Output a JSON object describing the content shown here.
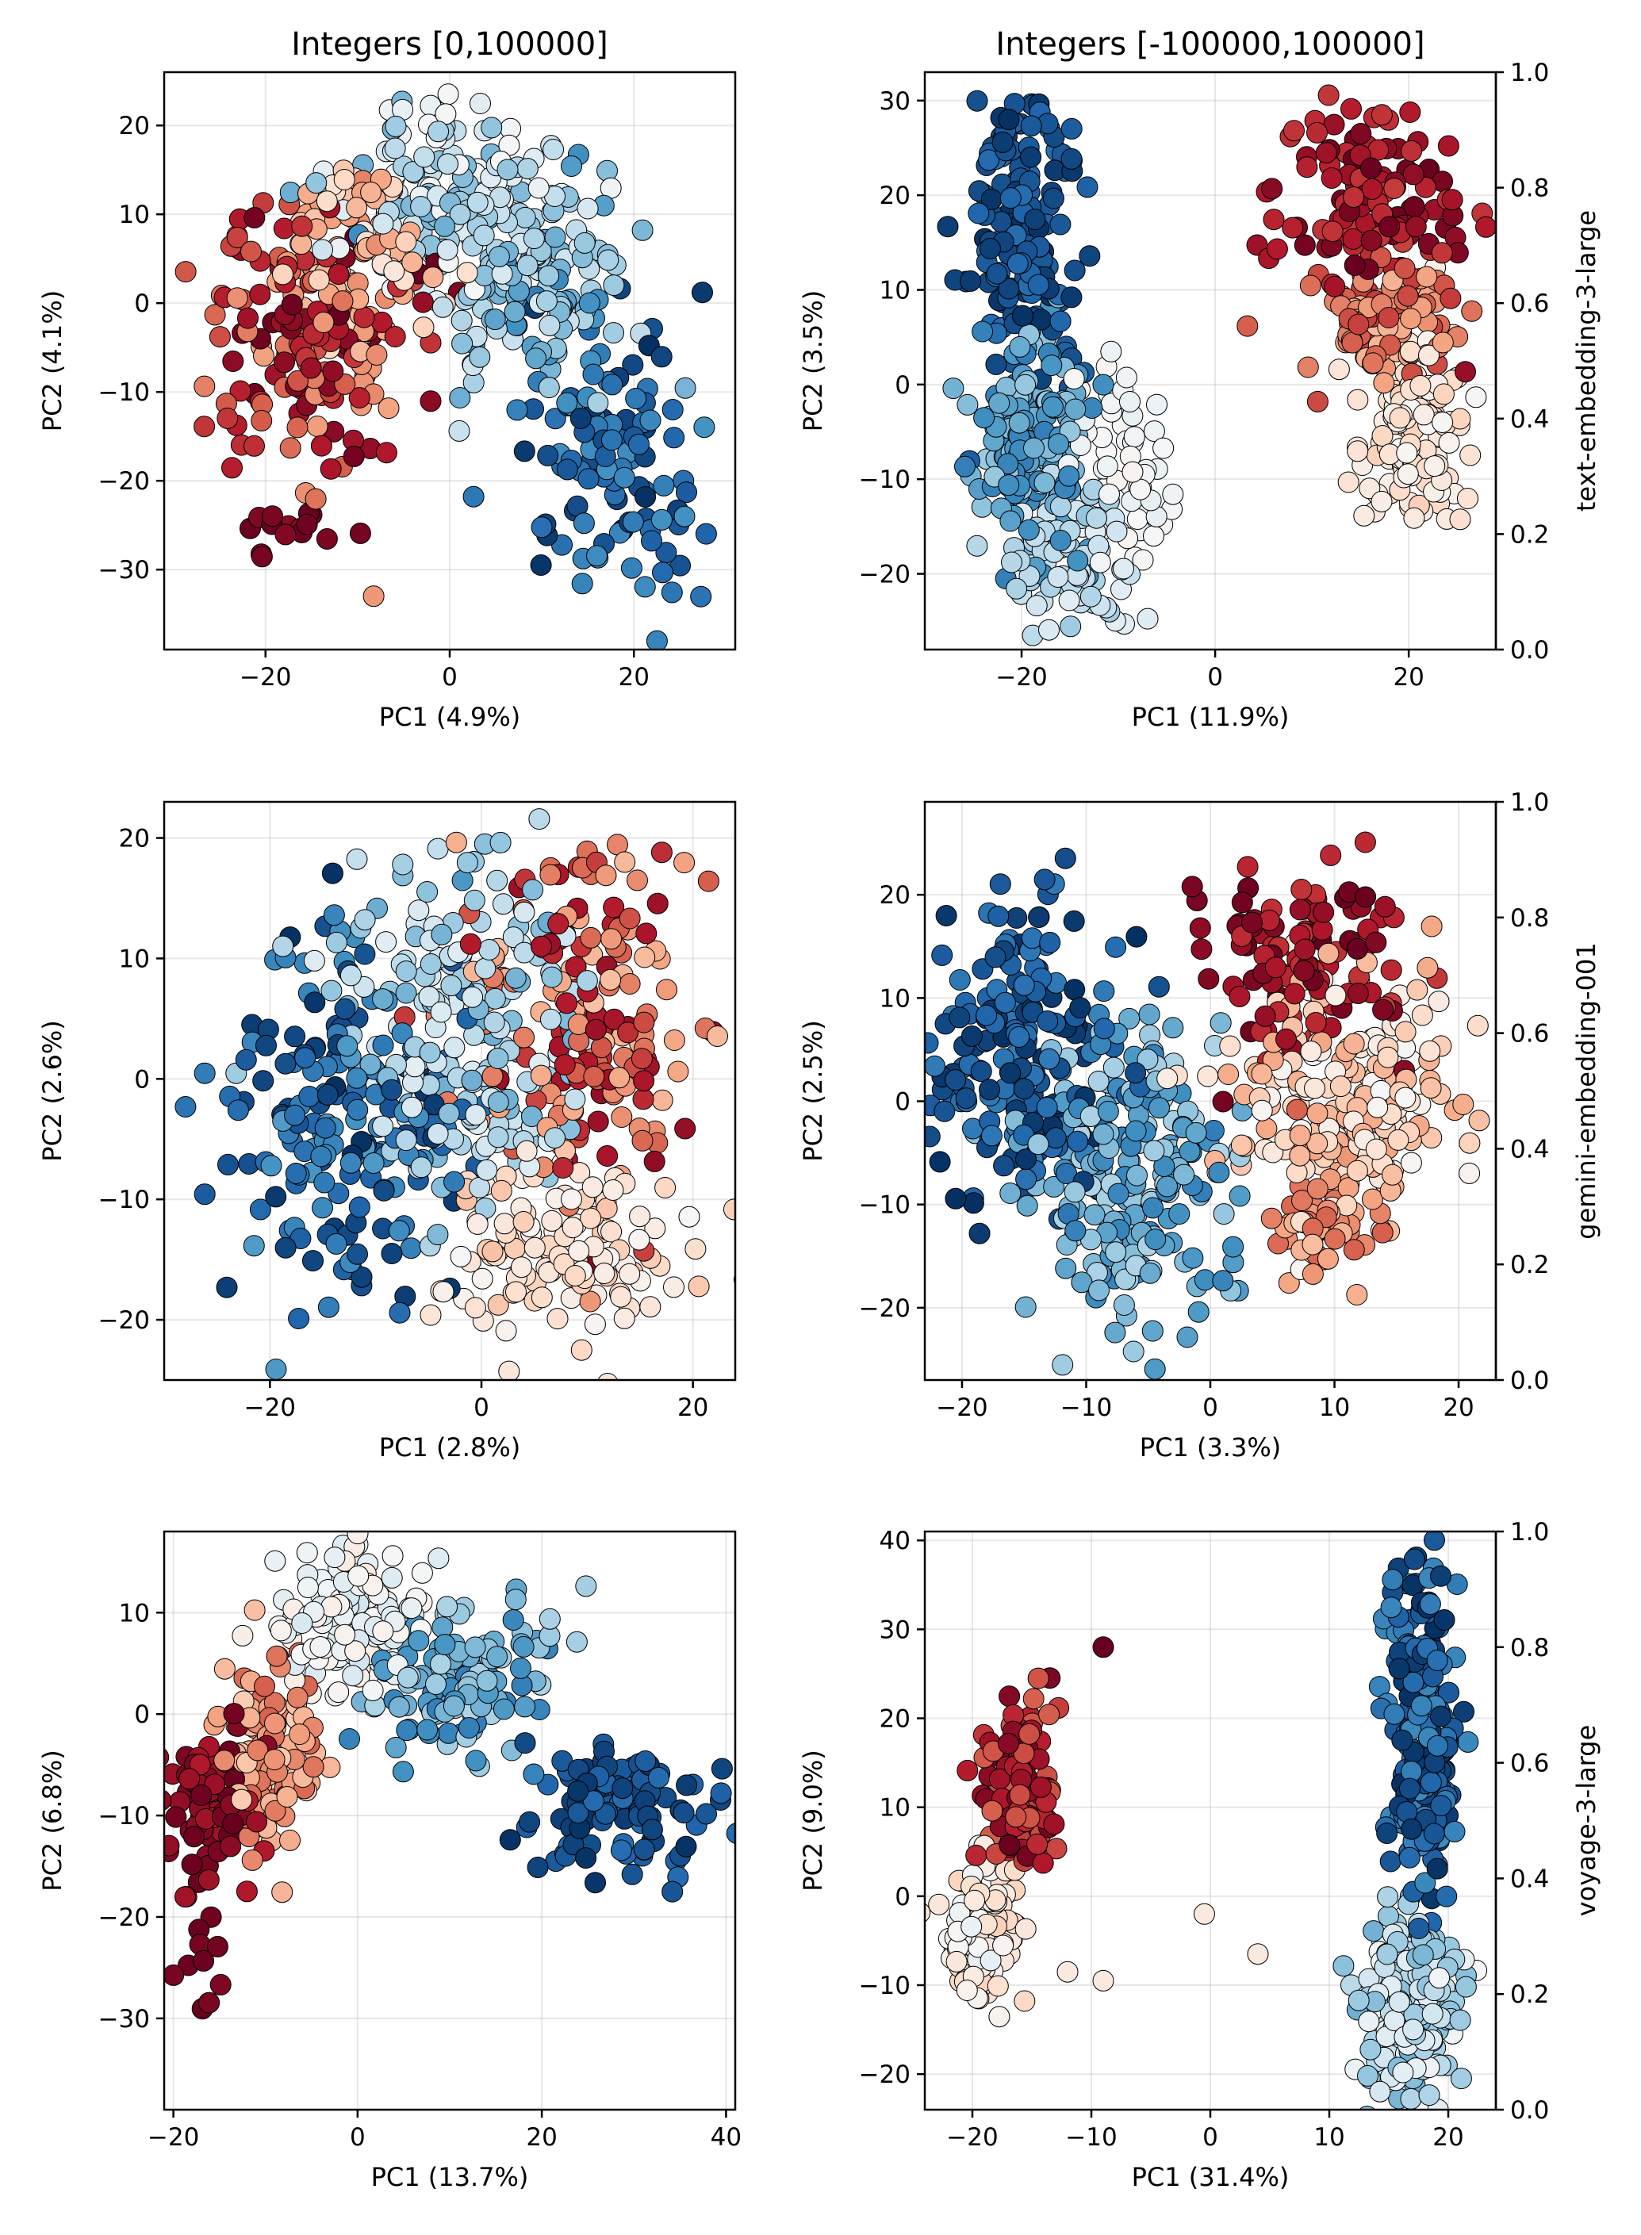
{
  "figure": {
    "colormap": "RdBu",
    "colormap_stops": [
      "#67001f",
      "#b2182b",
      "#d6604d",
      "#f4a582",
      "#fddbc7",
      "#f7f7f7",
      "#d1e5f0",
      "#92c5de",
      "#4393c3",
      "#2166ac",
      "#053061"
    ],
    "edge_color": "#000000"
  },
  "chart_data": [
    {
      "type": "scatter",
      "id": "p00",
      "title": "Integers [0,100000]",
      "xlabel": "PC1 (4.9%)",
      "ylabel": "PC2 (4.1%)",
      "xlim": [
        -31,
        31
      ],
      "ylim": [
        -39,
        26
      ],
      "xticks": [
        -20,
        0,
        20
      ],
      "yticks": [
        -30,
        -20,
        -10,
        0,
        10,
        20
      ],
      "grid": true,
      "clusters": [
        {
          "cx": -16,
          "cy": -5,
          "sx": 6,
          "sy": 8,
          "c0": 0.0,
          "c1": 0.3,
          "n": 160
        },
        {
          "cx": -10,
          "cy": 6,
          "sx": 4,
          "sy": 5,
          "c0": 0.25,
          "c1": 0.45,
          "n": 90
        },
        {
          "cx": 0,
          "cy": 12,
          "sx": 7,
          "sy": 6,
          "c0": 0.5,
          "c1": 0.75,
          "n": 160
        },
        {
          "cx": 8,
          "cy": 3,
          "sx": 6,
          "sy": 6,
          "c0": 0.6,
          "c1": 0.85,
          "n": 120
        },
        {
          "cx": 18,
          "cy": -18,
          "sx": 5,
          "sy": 8,
          "c0": 0.8,
          "c1": 1.0,
          "n": 110
        },
        {
          "cx": -16,
          "cy": -26,
          "sx": 4,
          "sy": 2,
          "c0": 0.0,
          "c1": 0.05,
          "n": 15
        }
      ]
    },
    {
      "type": "scatter",
      "id": "p01",
      "title": "Integers [-100000,100000]",
      "xlabel": "PC1 (11.9%)",
      "ylabel": "PC2 (3.5%)",
      "xlim": [
        -30,
        29
      ],
      "ylim": [
        -28,
        33
      ],
      "xticks": [
        -20,
        0,
        20
      ],
      "yticks": [
        -20,
        -10,
        0,
        10,
        20,
        30
      ],
      "grid": true,
      "colorbar": {
        "label": "text-embedding-3-large",
        "ticks": [
          0.0,
          0.2,
          0.4,
          0.6,
          0.8,
          1.0
        ]
      },
      "clusters": [
        {
          "cx": -20,
          "cy": 16,
          "sx": 3,
          "sy": 8,
          "c0": 0.88,
          "c1": 1.0,
          "n": 160
        },
        {
          "cx": -19,
          "cy": -6,
          "sx": 3,
          "sy": 6,
          "c0": 0.68,
          "c1": 0.85,
          "n": 160
        },
        {
          "cx": -15,
          "cy": -19,
          "sx": 3,
          "sy": 4,
          "c0": 0.55,
          "c1": 0.68,
          "n": 90
        },
        {
          "cx": -10,
          "cy": -9,
          "sx": 3,
          "sy": 5,
          "c0": 0.48,
          "c1": 0.55,
          "n": 60
        },
        {
          "cx": 16,
          "cy": 19,
          "sx": 5,
          "sy": 5,
          "c0": 0.0,
          "c1": 0.15,
          "n": 120
        },
        {
          "cx": 18,
          "cy": 7,
          "sx": 4,
          "sy": 3,
          "c0": 0.15,
          "c1": 0.35,
          "n": 110
        },
        {
          "cx": 20,
          "cy": -6,
          "sx": 3,
          "sy": 5,
          "c0": 0.38,
          "c1": 0.5,
          "n": 120
        }
      ]
    },
    {
      "type": "scatter",
      "id": "p10",
      "xlabel": "PC1 (2.8%)",
      "ylabel": "PC2 (2.6%)",
      "xlim": [
        -30,
        24
      ],
      "ylim": [
        -25,
        23
      ],
      "xticks": [
        -20,
        0,
        20
      ],
      "yticks": [
        -20,
        -10,
        0,
        10,
        20
      ],
      "grid": true,
      "clusters": [
        {
          "cx": -13,
          "cy": -4,
          "sx": 6,
          "sy": 8,
          "c0": 0.78,
          "c1": 1.0,
          "n": 180
        },
        {
          "cx": -2,
          "cy": 4,
          "sx": 6,
          "sy": 7,
          "c0": 0.55,
          "c1": 0.75,
          "n": 200
        },
        {
          "cx": 10,
          "cy": 5,
          "sx": 5,
          "sy": 7,
          "c0": 0.05,
          "c1": 0.35,
          "n": 170
        },
        {
          "cx": 8,
          "cy": -14,
          "sx": 6,
          "sy": 4,
          "c0": 0.35,
          "c1": 0.5,
          "n": 130
        }
      ]
    },
    {
      "type": "scatter",
      "id": "p11",
      "xlabel": "PC1 (3.3%)",
      "ylabel": "PC2 (2.5%)",
      "xlim": [
        -23,
        23
      ],
      "ylim": [
        -27,
        29
      ],
      "xticks": [
        -20,
        -10,
        0,
        10,
        20
      ],
      "yticks": [
        -20,
        -10,
        0,
        10,
        20
      ],
      "grid": true,
      "colorbar": {
        "label": "gemini-embedding-001",
        "ticks": [
          0.0,
          0.2,
          0.4,
          0.6,
          0.8,
          1.0
        ]
      },
      "clusters": [
        {
          "cx": -15,
          "cy": 4,
          "sx": 4,
          "sy": 7,
          "c0": 0.85,
          "c1": 1.0,
          "n": 200
        },
        {
          "cx": -7,
          "cy": -7,
          "sx": 4,
          "sy": 7,
          "c0": 0.65,
          "c1": 0.85,
          "n": 220
        },
        {
          "cx": 7,
          "cy": 14,
          "sx": 4,
          "sy": 5,
          "c0": 0.0,
          "c1": 0.15,
          "n": 110
        },
        {
          "cx": 11,
          "cy": 0,
          "sx": 5,
          "sy": 6,
          "c0": 0.3,
          "c1": 0.5,
          "n": 220
        },
        {
          "cx": 9,
          "cy": -12,
          "sx": 3,
          "sy": 3,
          "c0": 0.2,
          "c1": 0.35,
          "n": 50
        }
      ]
    },
    {
      "type": "scatter",
      "id": "p20",
      "xlabel": "PC1 (13.7%)",
      "ylabel": "PC2 (6.8%)",
      "xlim": [
        -21,
        41
      ],
      "ylim": [
        -39,
        18
      ],
      "xticks": [
        -20,
        0,
        20,
        40
      ],
      "yticks": [
        -30,
        -20,
        -10,
        0,
        10
      ],
      "grid": true,
      "clusters": [
        {
          "cx": -15,
          "cy": -9,
          "sx": 3,
          "sy": 4,
          "c0": 0.0,
          "c1": 0.1,
          "n": 90
        },
        {
          "cx": -10,
          "cy": -4,
          "sx": 3,
          "sy": 5,
          "c0": 0.2,
          "c1": 0.38,
          "n": 110
        },
        {
          "cx": 0,
          "cy": 9,
          "sx": 4,
          "sy": 4,
          "c0": 0.45,
          "c1": 0.6,
          "n": 150
        },
        {
          "cx": 12,
          "cy": 3,
          "sx": 5,
          "sy": 4,
          "c0": 0.65,
          "c1": 0.85,
          "n": 130
        },
        {
          "cx": 28,
          "cy": -9,
          "sx": 5,
          "sy": 3,
          "c0": 0.88,
          "c1": 1.0,
          "n": 110
        },
        {
          "cx": -17,
          "cy": -24,
          "sx": 2,
          "sy": 3,
          "c0": 0.0,
          "c1": 0.03,
          "n": 10
        }
      ]
    },
    {
      "type": "scatter",
      "id": "p21",
      "xlabel": "PC1 (31.4%)",
      "ylabel": "PC2 (9.0%)",
      "xlim": [
        -24,
        24
      ],
      "ylim": [
        -24,
        41
      ],
      "xticks": [
        -20,
        -10,
        0,
        10,
        20
      ],
      "yticks": [
        -20,
        -10,
        0,
        10,
        20,
        30,
        40
      ],
      "grid": true,
      "colorbar": {
        "label": "voyage-3-large",
        "ticks": [
          0.0,
          0.2,
          0.4,
          0.6,
          0.8,
          1.0
        ]
      },
      "clusters": [
        {
          "cx": -16,
          "cy": 12,
          "sx": 1.6,
          "sy": 5,
          "c0": 0.0,
          "c1": 0.2,
          "n": 110
        },
        {
          "cx": -19,
          "cy": -4,
          "sx": 1.5,
          "sy": 3.5,
          "c0": 0.38,
          "c1": 0.55,
          "n": 130
        },
        {
          "cx": 18,
          "cy": 18,
          "sx": 1.5,
          "sy": 10,
          "c0": 0.82,
          "c1": 1.0,
          "n": 220
        },
        {
          "cx": 17,
          "cy": -12,
          "sx": 2,
          "sy": 5,
          "c0": 0.5,
          "c1": 0.75,
          "n": 200
        }
      ],
      "extra_points": [
        {
          "x": -9,
          "y": 28,
          "c": 0.0
        },
        {
          "x": -12,
          "y": -8.5,
          "c": 0.45
        },
        {
          "x": -9,
          "y": -9.5,
          "c": 0.45
        },
        {
          "x": -0.5,
          "y": -2,
          "c": 0.45
        },
        {
          "x": 4,
          "y": -6.5,
          "c": 0.45
        }
      ]
    }
  ]
}
